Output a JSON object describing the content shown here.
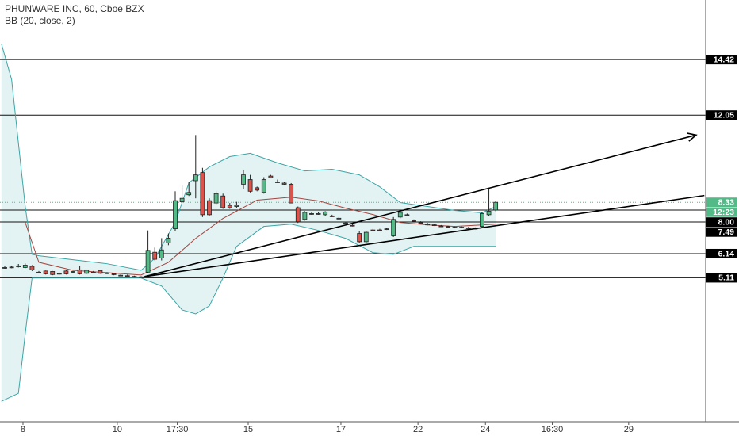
{
  "chart_data": {
    "type": "candlestick",
    "title": "PHUNWARE INC, 60, Cboe BZX",
    "subtitle": "BB (20, close, 2)",
    "xlim": [
      -0.7,
      102.8
    ],
    "ylim": [
      -1.03,
      16.96
    ],
    "xticks": [
      {
        "value": 2.67,
        "label": "8"
      },
      {
        "value": 16.5,
        "label": "10"
      },
      {
        "value": 25.3,
        "label": "17:30"
      },
      {
        "value": 35.7,
        "label": "15"
      },
      {
        "value": 49.3,
        "label": "17"
      },
      {
        "value": 60.6,
        "label": "22"
      },
      {
        "value": 70.5,
        "label": "24"
      },
      {
        "value": 80.3,
        "label": "16:30"
      },
      {
        "value": 91.5,
        "label": "29"
      }
    ],
    "up_color": "#53b987",
    "down_color": "#d8544d",
    "candles": {
      "open": [
        5.55,
        5.57,
        5.58,
        5.55,
        5.6,
        5.35,
        5.4,
        5.38,
        5.3,
        5.4,
        5.35,
        5.45,
        5.3,
        5.35,
        5.42,
        5.3,
        5.28,
        5.22,
        5.2,
        5.15,
        5.15,
        5.35,
        6.2,
        5.95,
        6.6,
        7.2,
        8.35,
        8.65,
        9.25,
        9.6,
        8.4,
        8.3,
        8.6,
        8.2,
        8.15,
        9.1,
        9.3,
        8.95,
        8.75,
        9.45,
        9.2,
        9.15,
        9.1,
        8.1,
        7.6,
        7.85,
        7.85,
        7.8,
        7.75,
        7.65,
        7.45,
        7.35,
        7.0,
        6.65,
        7.15,
        7.15,
        7.2,
        6.9,
        7.7,
        7.8,
        7.55,
        7.47,
        7.4,
        7.37,
        7.32,
        7.3,
        7.27,
        7.27,
        7.24,
        7.22,
        7.3,
        7.8,
        8.0
      ],
      "high": [
        5.6,
        5.6,
        5.7,
        5.72,
        5.65,
        5.4,
        5.42,
        5.4,
        5.33,
        5.45,
        5.4,
        5.6,
        5.45,
        5.4,
        5.45,
        5.35,
        5.3,
        5.26,
        5.25,
        5.2,
        5.18,
        7.13,
        6.4,
        6.8,
        7.0,
        8.8,
        9.05,
        9.2,
        11.2,
        9.8,
        8.5,
        8.8,
        8.7,
        8.3,
        8.35,
        9.7,
        9.5,
        9.0,
        9.4,
        9.5,
        9.3,
        9.2,
        9.15,
        8.15,
        7.95,
        7.9,
        7.9,
        7.95,
        7.8,
        7.7,
        7.5,
        7.4,
        7.1,
        7.1,
        7.2,
        7.2,
        7.25,
        7.7,
        8.0,
        7.85,
        7.6,
        7.52,
        7.45,
        7.4,
        7.36,
        7.33,
        7.3,
        7.3,
        7.28,
        7.26,
        7.9,
        8.9,
        8.4
      ],
      "low": [
        5.5,
        5.52,
        5.55,
        5.52,
        5.4,
        5.3,
        5.25,
        5.22,
        5.25,
        5.25,
        5.3,
        5.25,
        5.28,
        5.3,
        5.28,
        5.27,
        5.22,
        5.18,
        5.15,
        5.12,
        5.11,
        5.3,
        5.85,
        5.85,
        6.5,
        7.1,
        8.3,
        8.6,
        8.5,
        7.7,
        7.75,
        8.2,
        8.05,
        8.05,
        8.1,
        8.9,
        8.75,
        8.8,
        8.7,
        9.35,
        9.15,
        9.05,
        8.3,
        7.45,
        7.55,
        7.8,
        7.8,
        7.75,
        7.7,
        7.6,
        7.4,
        7.3,
        6.6,
        6.6,
        7.1,
        7.1,
        7.15,
        6.85,
        7.65,
        7.75,
        7.5,
        7.42,
        7.35,
        7.32,
        7.28,
        7.25,
        7.22,
        7.22,
        7.2,
        7.18,
        7.25,
        7.75,
        7.95
      ],
      "close": [
        5.55,
        5.55,
        5.62,
        5.65,
        5.45,
        5.33,
        5.28,
        5.25,
        5.3,
        5.28,
        5.38,
        5.28,
        5.43,
        5.33,
        5.3,
        5.32,
        5.25,
        5.2,
        5.18,
        5.17,
        5.14,
        6.28,
        5.9,
        6.3,
        6.8,
        8.4,
        8.5,
        8.75,
        9.5,
        7.8,
        7.8,
        8.7,
        8.1,
        8.1,
        8.2,
        9.5,
        8.8,
        8.85,
        9.3,
        9.38,
        9.2,
        9.1,
        8.3,
        7.5,
        7.9,
        7.82,
        7.83,
        7.92,
        7.72,
        7.62,
        7.42,
        7.32,
        6.65,
        7.05,
        7.12,
        7.13,
        7.18,
        7.6,
        7.9,
        7.8,
        7.52,
        7.45,
        7.4,
        7.35,
        7.3,
        7.28,
        7.25,
        7.25,
        7.22,
        7.2,
        7.85,
        7.95,
        8.33
      ]
    },
    "bands": [
      {
        "color": "#3aa5a5",
        "x": [
          -0.5,
          1,
          2,
          3,
          4,
          5,
          10,
          15,
          20,
          22,
          25,
          27,
          30,
          33,
          36,
          40,
          44,
          48,
          52,
          55,
          58,
          62,
          66,
          70,
          72
        ],
        "values": [
          15.1,
          13.57,
          10.86,
          8.15,
          6.11,
          6.05,
          5.88,
          5.71,
          5.43,
          5.94,
          7.47,
          9.16,
          9.84,
          10.28,
          10.42,
          10.01,
          9.67,
          9.74,
          9.5,
          8.99,
          8.32,
          8.15,
          7.98,
          7.88,
          8.15
        ]
      },
      {
        "color": "#a5443f",
        "x": [
          3,
          5,
          10,
          20,
          24,
          28,
          32,
          37,
          42,
          46,
          50,
          54,
          58,
          62,
          66,
          72
        ],
        "values": [
          7.47,
          5.77,
          5.43,
          5.23,
          5.77,
          6.79,
          7.64,
          8.42,
          8.55,
          8.39,
          8.08,
          7.81,
          7.47,
          7.37,
          7.3,
          7.4
        ]
      },
      {
        "color": "#3aa5a5",
        "x": [
          -0.5,
          2,
          3,
          4,
          10,
          20,
          23,
          26,
          28,
          30,
          32,
          34,
          38,
          42,
          46,
          50,
          54,
          57,
          60,
          66,
          72
        ],
        "values": [
          -0.16,
          0.18,
          2.72,
          5.1,
          5.1,
          5.1,
          4.76,
          3.74,
          3.57,
          3.91,
          5.1,
          6.45,
          7.3,
          7.4,
          7.13,
          6.79,
          6.18,
          6.11,
          6.45,
          6.45,
          6.45
        ]
      }
    ],
    "band_fill": "#e3f3f3",
    "price_lines": [
      14.42,
      12.05,
      {
        "value": 8,
        "label": "8.00"
      },
      7.49,
      6.14,
      5.11
    ],
    "last_price": 8.33,
    "countdown": "12:23",
    "trendlines": [
      {
        "start": [
          20.5,
          5.16
        ],
        "end": [
          101.4,
          11.2
        ],
        "arrow": true
      },
      {
        "start": [
          20.5,
          5.16
        ],
        "end": [
          102.6,
          8.62
        ],
        "arrow": false
      }
    ]
  }
}
